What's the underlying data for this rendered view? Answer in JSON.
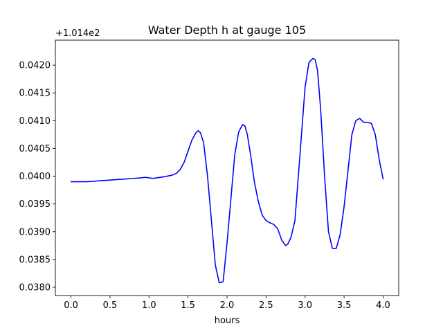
{
  "chart_data": {
    "type": "line",
    "title": "Water Depth h at gauge 105",
    "xlabel": "hours",
    "ylabel": "",
    "offset_label": "+1.014e2",
    "x_ticks": [
      0.0,
      0.5,
      1.0,
      1.5,
      2.0,
      2.5,
      3.0,
      3.5,
      4.0
    ],
    "x_tick_labels": [
      "0.0",
      "0.5",
      "1.0",
      "1.5",
      "2.0",
      "2.5",
      "3.0",
      "3.5",
      "4.0"
    ],
    "y_ticks": [
      0.038,
      0.0385,
      0.039,
      0.0395,
      0.04,
      0.0405,
      0.041,
      0.0415,
      0.042
    ],
    "y_tick_labels": [
      "0.0380",
      "0.0385",
      "0.0390",
      "0.0395",
      "0.0400",
      "0.0405",
      "0.0410",
      "0.0415",
      "0.0420"
    ],
    "xlim": [
      -0.2,
      4.2
    ],
    "ylim": [
      0.03785,
      0.04245
    ],
    "grid": false,
    "series": [
      {
        "color": "#0000ff",
        "x": [
          0.0,
          0.1,
          0.2,
          0.3,
          0.4,
          0.5,
          0.6,
          0.7,
          0.8,
          0.9,
          0.95,
          1.0,
          1.05,
          1.1,
          1.2,
          1.3,
          1.35,
          1.4,
          1.45,
          1.5,
          1.55,
          1.6,
          1.63,
          1.66,
          1.7,
          1.75,
          1.8,
          1.85,
          1.9,
          1.95,
          2.0,
          2.05,
          2.1,
          2.15,
          2.2,
          2.23,
          2.26,
          2.3,
          2.35,
          2.4,
          2.45,
          2.5,
          2.55,
          2.6,
          2.65,
          2.7,
          2.75,
          2.78,
          2.82,
          2.87,
          2.93,
          3.0,
          3.05,
          3.1,
          3.13,
          3.16,
          3.2,
          3.25,
          3.3,
          3.35,
          3.4,
          3.45,
          3.5,
          3.55,
          3.6,
          3.65,
          3.7,
          3.75,
          3.8,
          3.85,
          3.9,
          3.95,
          4.0
        ],
        "y": [
          0.0399,
          0.0399,
          0.0399,
          0.03991,
          0.03992,
          0.03993,
          0.03994,
          0.03995,
          0.03996,
          0.03997,
          0.03998,
          0.03997,
          0.03996,
          0.03997,
          0.03999,
          0.04002,
          0.04005,
          0.04012,
          0.04025,
          0.04045,
          0.04065,
          0.04078,
          0.04082,
          0.04078,
          0.0406,
          0.04,
          0.0392,
          0.0384,
          0.03808,
          0.0381,
          0.0388,
          0.0396,
          0.0404,
          0.0408,
          0.04093,
          0.0409,
          0.04075,
          0.0404,
          0.0399,
          0.03955,
          0.0393,
          0.0392,
          0.03916,
          0.03913,
          0.03905,
          0.03885,
          0.03875,
          0.03878,
          0.0389,
          0.0392,
          0.0403,
          0.0416,
          0.04205,
          0.04212,
          0.0421,
          0.0419,
          0.0412,
          0.04,
          0.039,
          0.0387,
          0.0387,
          0.03895,
          0.03945,
          0.0401,
          0.04075,
          0.041,
          0.04104,
          0.04097,
          0.04097,
          0.04095,
          0.04075,
          0.0403,
          0.03995
        ]
      }
    ]
  }
}
